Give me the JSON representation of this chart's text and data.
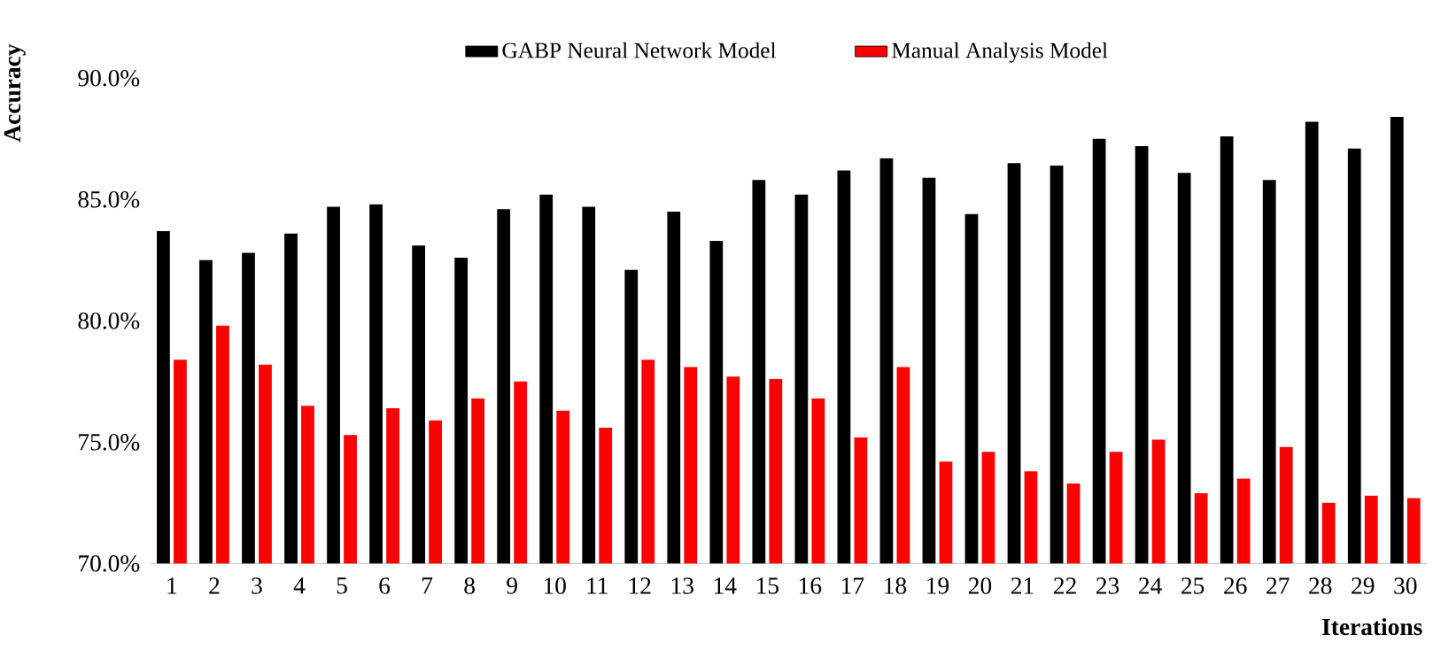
{
  "chart_data": {
    "type": "bar",
    "xlabel": "Iterations",
    "ylabel": "Accuracy",
    "categories": [
      "1",
      "2",
      "3",
      "4",
      "5",
      "6",
      "7",
      "8",
      "9",
      "10",
      "11",
      "12",
      "13",
      "14",
      "15",
      "16",
      "17",
      "18",
      "19",
      "20",
      "21",
      "22",
      "23",
      "24",
      "25",
      "26",
      "27",
      "28",
      "29",
      "30"
    ],
    "series": [
      {
        "name": "GABP Neural Network Model",
        "color": "#000000",
        "values": [
          83.7,
          82.5,
          82.8,
          83.6,
          84.7,
          84.8,
          83.1,
          82.6,
          84.6,
          85.2,
          84.7,
          82.1,
          84.5,
          83.3,
          85.8,
          85.2,
          86.2,
          86.7,
          85.9,
          84.4,
          86.5,
          86.4,
          87.5,
          87.2,
          86.1,
          87.6,
          85.8,
          88.2,
          87.1,
          88.4
        ]
      },
      {
        "name": "Manual Analysis Model",
        "color": "#ff0000",
        "values": [
          78.4,
          79.8,
          78.2,
          76.5,
          75.3,
          76.4,
          75.9,
          76.8,
          77.5,
          76.3,
          75.6,
          78.4,
          78.1,
          77.7,
          77.6,
          76.8,
          75.2,
          78.1,
          74.2,
          74.6,
          73.8,
          73.3,
          74.6,
          75.1,
          72.9,
          73.5,
          74.8,
          72.5,
          72.8,
          72.7
        ]
      }
    ],
    "ylim": [
      70,
      90
    ],
    "yticks": [
      {
        "value": 70,
        "label": "70.0%"
      },
      {
        "value": 75,
        "label": "75.0%"
      },
      {
        "value": 80,
        "label": "80.0%"
      },
      {
        "value": 85,
        "label": "85.0%"
      },
      {
        "value": 90,
        "label": "90.0%"
      }
    ],
    "legend": "top"
  }
}
